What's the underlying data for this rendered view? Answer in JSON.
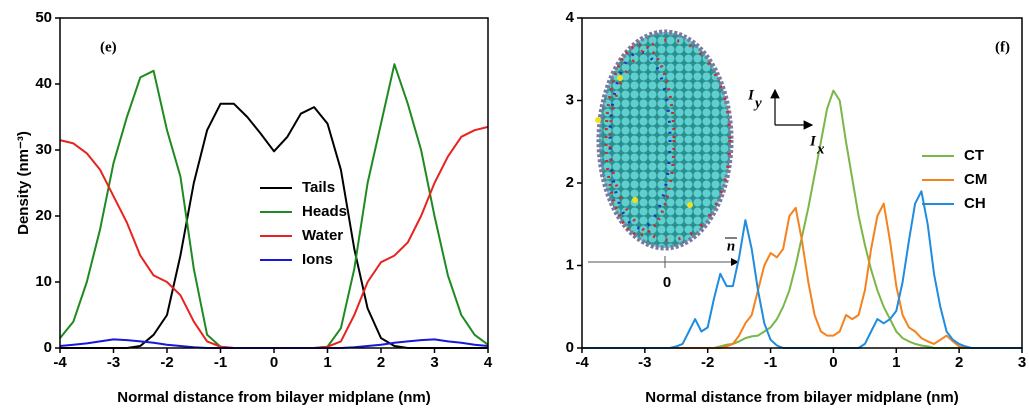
{
  "chart_data": [
    {
      "type": "line",
      "panel_label": "(e)",
      "x_label": "Normal distance from bilayer midplane (nm)",
      "y_label": "Density (nm⁻³)",
      "x": [
        -4,
        -3.75,
        -3.5,
        -3.25,
        -3,
        -2.75,
        -2.5,
        -2.25,
        -2,
        -1.75,
        -1.5,
        -1.25,
        -1,
        -0.75,
        -0.5,
        -0.25,
        0,
        0.25,
        0.5,
        0.75,
        1,
        1.25,
        1.5,
        1.75,
        2,
        2.25,
        2.5,
        2.75,
        3,
        3.25,
        3.5,
        3.75,
        4
      ],
      "series": [
        {
          "name": "Tails",
          "color": "#000000",
          "values": [
            0,
            0,
            0,
            0,
            0,
            0,
            0.3,
            2,
            5,
            14,
            25,
            33,
            37,
            37,
            35,
            32.5,
            29.8,
            32,
            35.5,
            36.5,
            34,
            27,
            15,
            6,
            1.5,
            0.3,
            0,
            0,
            0,
            0,
            0,
            0,
            0
          ]
        },
        {
          "name": "Heads",
          "color": "#1f8a1f",
          "values": [
            1.5,
            4,
            10,
            18,
            28,
            35,
            41,
            42,
            33,
            26,
            12,
            2,
            0.2,
            0,
            0,
            0,
            0,
            0,
            0,
            0,
            0.2,
            3,
            12,
            25,
            34,
            43,
            37,
            30,
            20,
            11,
            5,
            2,
            0.5
          ]
        },
        {
          "name": "Water",
          "color": "#e8231f",
          "values": [
            31.5,
            31,
            29.5,
            27,
            23,
            19,
            14,
            11,
            10,
            8,
            4,
            1,
            0.2,
            0,
            0,
            0,
            0,
            0,
            0,
            0,
            0.2,
            1,
            5,
            10,
            13,
            14,
            16,
            20,
            25,
            29,
            32,
            33,
            33.5
          ]
        },
        {
          "name": "Ions",
          "color": "#1818d8",
          "values": [
            0.3,
            0.5,
            0.7,
            1.0,
            1.3,
            1.2,
            1.0,
            0.8,
            0.5,
            0.3,
            0.1,
            0,
            0,
            0,
            0,
            0,
            0,
            0,
            0,
            0,
            0,
            0,
            0.1,
            0.3,
            0.5,
            0.8,
            1.0,
            1.2,
            1.3,
            1.0,
            0.8,
            0.5,
            0.3
          ]
        }
      ],
      "xlim": [
        -4,
        4
      ],
      "xticks": [
        -4,
        -3,
        -2,
        -1,
        0,
        1,
        2,
        3,
        4
      ],
      "ylim": [
        0,
        50
      ],
      "yticks": [
        0,
        10,
        20,
        30,
        40,
        50
      ],
      "legend": "lower center"
    },
    {
      "type": "line",
      "panel_label": "(f)",
      "x_label": "Normal distance from bilayer midplane (nm)",
      "inset": {
        "y_axis": "I",
        "y_sub": "y",
        "x_axis": "I",
        "x_sub": "x",
        "normal": "n",
        "origin": "0"
      },
      "x": [
        -4,
        -3.0,
        -2.9,
        -2.8,
        -2.7,
        -2.6,
        -2.5,
        -2.4,
        -2.3,
        -2.2,
        -2.1,
        -2.0,
        -1.9,
        -1.8,
        -1.7,
        -1.6,
        -1.5,
        -1.4,
        -1.3,
        -1.2,
        -1.1,
        -1.0,
        -0.9,
        -0.8,
        -0.7,
        -0.6,
        -0.5,
        -0.4,
        -0.3,
        -0.2,
        -0.1,
        0,
        0.1,
        0.2,
        0.3,
        0.4,
        0.5,
        0.6,
        0.7,
        0.8,
        0.9,
        1.0,
        1.1,
        1.2,
        1.3,
        1.4,
        1.5,
        1.6,
        1.7,
        1.8,
        1.9,
        2.0,
        2.1,
        2.2,
        2.3,
        2.4,
        2.5,
        3
      ],
      "series": [
        {
          "name": "CT",
          "color": "#7ab648",
          "values": [
            0,
            0,
            0,
            0,
            0,
            0,
            0,
            0,
            0,
            0,
            0,
            0,
            0,
            0.02,
            0.04,
            0.05,
            0.08,
            0.12,
            0.14,
            0.15,
            0.2,
            0.25,
            0.35,
            0.5,
            0.7,
            1.0,
            1.35,
            1.7,
            2.1,
            2.5,
            2.9,
            3.12,
            3.0,
            2.5,
            2.05,
            1.6,
            1.25,
            0.95,
            0.7,
            0.5,
            0.35,
            0.2,
            0.12,
            0.08,
            0.05,
            0.03,
            0.02,
            0,
            0,
            0,
            0,
            0,
            0,
            0,
            0,
            0,
            0,
            0
          ]
        },
        {
          "name": "CM",
          "color": "#f5821f",
          "values": [
            0,
            0,
            0,
            0,
            0,
            0,
            0,
            0,
            0,
            0,
            0,
            0,
            0,
            0,
            0.02,
            0.05,
            0.15,
            0.3,
            0.4,
            0.7,
            1.0,
            1.15,
            1.1,
            1.2,
            1.6,
            1.7,
            1.3,
            0.8,
            0.4,
            0.2,
            0.15,
            0.15,
            0.2,
            0.4,
            0.35,
            0.4,
            0.7,
            1.2,
            1.6,
            1.75,
            1.3,
            0.75,
            0.4,
            0.25,
            0.2,
            0.12,
            0.08,
            0.05,
            0.1,
            0.15,
            0.08,
            0.02,
            0,
            0,
            0,
            0,
            0,
            0
          ]
        },
        {
          "name": "CH",
          "color": "#1f8ce0",
          "values": [
            0,
            0,
            0,
            0,
            0,
            0,
            0.02,
            0.05,
            0.2,
            0.35,
            0.2,
            0.25,
            0.6,
            0.9,
            0.75,
            0.75,
            1.1,
            1.55,
            1.2,
            0.7,
            0.3,
            0.1,
            0.03,
            0,
            0,
            0,
            0,
            0,
            0,
            0,
            0,
            0,
            0,
            0,
            0,
            0,
            0.05,
            0.2,
            0.35,
            0.3,
            0.35,
            0.45,
            0.8,
            1.3,
            1.75,
            1.9,
            1.5,
            0.9,
            0.5,
            0.2,
            0.1,
            0.05,
            0.02,
            0,
            0,
            0,
            0,
            0
          ]
        }
      ],
      "xlim": [
        -4,
        3
      ],
      "xticks": [
        -4,
        -3,
        -2,
        -1,
        0,
        1,
        2,
        3
      ],
      "ylim": [
        0,
        4
      ],
      "yticks": [
        0,
        1,
        2,
        3,
        4
      ],
      "legend": "center right"
    }
  ]
}
